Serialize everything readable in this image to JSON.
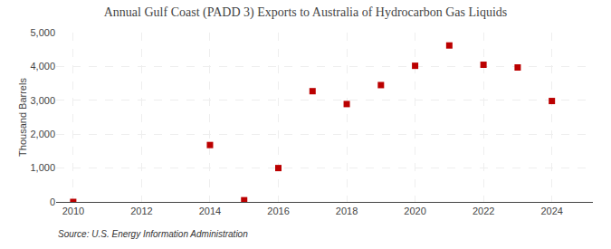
{
  "chart_data": {
    "type": "scatter",
    "title": "Annual Gulf Coast (PADD 3) Exports to Australia of Hydrocarbon Gas Liquids",
    "ylabel": "Thousand Barrels",
    "annotations": [
      "Source: U.S. Energy Information Administration"
    ],
    "x": [
      2010,
      2014,
      2015,
      2016,
      2017,
      2018,
      2019,
      2020,
      2021,
      2022,
      2023,
      2024
    ],
    "values": [
      0,
      1680,
      50,
      1000,
      3270,
      2890,
      3450,
      4020,
      4620,
      4050,
      3970,
      2980
    ],
    "color": "#bb0000",
    "marker": "square",
    "xlim": [
      2009.5,
      2025.2
    ],
    "ylim": [
      0,
      5000
    ],
    "xticks": [
      2010,
      2012,
      2014,
      2016,
      2018,
      2020,
      2022,
      2024
    ],
    "yticks": [
      0,
      {
        "value": 1000,
        "label": "1,000"
      },
      {
        "value": 2000,
        "label": "2,000"
      },
      {
        "value": 3000,
        "label": "3,000"
      },
      {
        "value": 4000,
        "label": "4,000"
      },
      {
        "value": 5000,
        "label": "5,000"
      }
    ],
    "grid": true
  }
}
